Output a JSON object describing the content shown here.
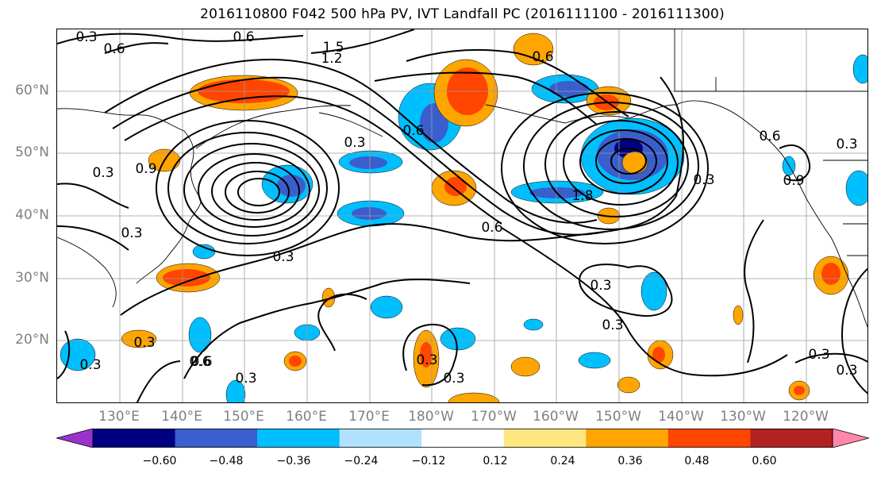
{
  "title": "2016110800 F042 500 hPa PV, IVT Landfall PC (2016111100 - 2016111300)",
  "lat_labels": [
    "60°N",
    "50°N",
    "40°N",
    "30°N",
    "20°N"
  ],
  "lon_labels": [
    "130°E",
    "140°E",
    "150°E",
    "160°E",
    "170°E",
    "180°W",
    "170°W",
    "160°W",
    "150°W",
    "140°W",
    "130°W",
    "120°W"
  ],
  "colorbar": {
    "ticks": [
      "−0.60",
      "−0.48",
      "−0.36",
      "−0.24",
      "−0.12",
      "0.12",
      "0.24",
      "0.36",
      "0.48",
      "0.60"
    ],
    "colors": [
      "#9932cc",
      "#000080",
      "#3a5fcd",
      "#00bfff",
      "#b0e2ff",
      "#ffffff",
      "#ffe680",
      "#ffa500",
      "#ff4500",
      "#b22222",
      "#ff88aa"
    ]
  },
  "contour_labels": [
    "0.3",
    "0.6",
    "0.6",
    "1.5",
    "1.2",
    "0.6",
    "0.3",
    "0.9",
    "0.6",
    "0.3",
    "0.6",
    "1.8",
    "0.3",
    "0.3",
    "0.3",
    "0.3",
    "0.6",
    "0.3",
    "0.9",
    "0.6",
    "0.3",
    "0.3",
    "0.6",
    "0.3",
    "0.3",
    "0.3",
    "0.3",
    "0.3",
    "0.3"
  ]
}
